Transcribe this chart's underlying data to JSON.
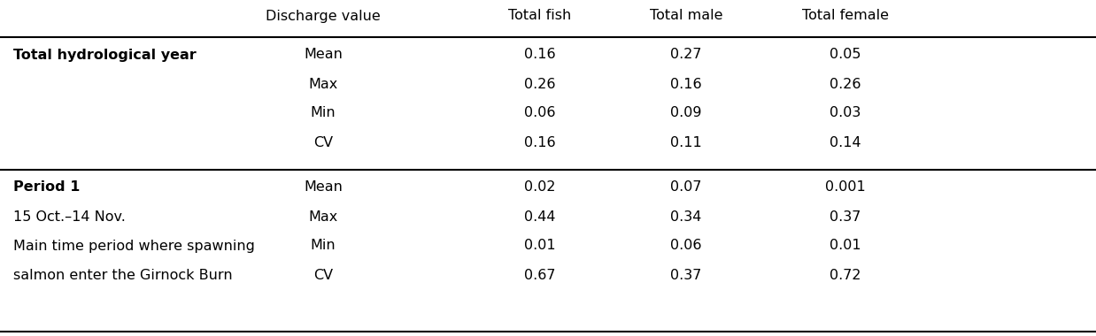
{
  "columns": [
    "Discharge value",
    "Total fish",
    "Total male",
    "Total female"
  ],
  "section1_header_bold": "Total hydrological year",
  "section1_rows": [
    [
      "Mean",
      "0.16",
      "0.27",
      "0.05"
    ],
    [
      "Max",
      "0.26",
      "0.16",
      "0.26"
    ],
    [
      "Min",
      "0.06",
      "0.09",
      "0.03"
    ],
    [
      "CV",
      "0.16",
      "0.11",
      "0.14"
    ]
  ],
  "section2_header_bold": "Period 1",
  "section2_sublines": [
    "15 Oct.–14 Nov.",
    "Main time period where spawning",
    "salmon enter the Girnock Burn"
  ],
  "section2_rows": [
    [
      "Mean",
      "0.02",
      "0.07",
      "0.001"
    ],
    [
      "Max",
      "0.44",
      "0.34",
      "0.37"
    ],
    [
      "Min",
      "0.01",
      "0.06",
      "0.01"
    ],
    [
      "CV",
      "0.67",
      "0.37",
      "0.72"
    ]
  ],
  "bg_color": "#ffffff",
  "text_color": "#000000",
  "fontsize": 11.5
}
